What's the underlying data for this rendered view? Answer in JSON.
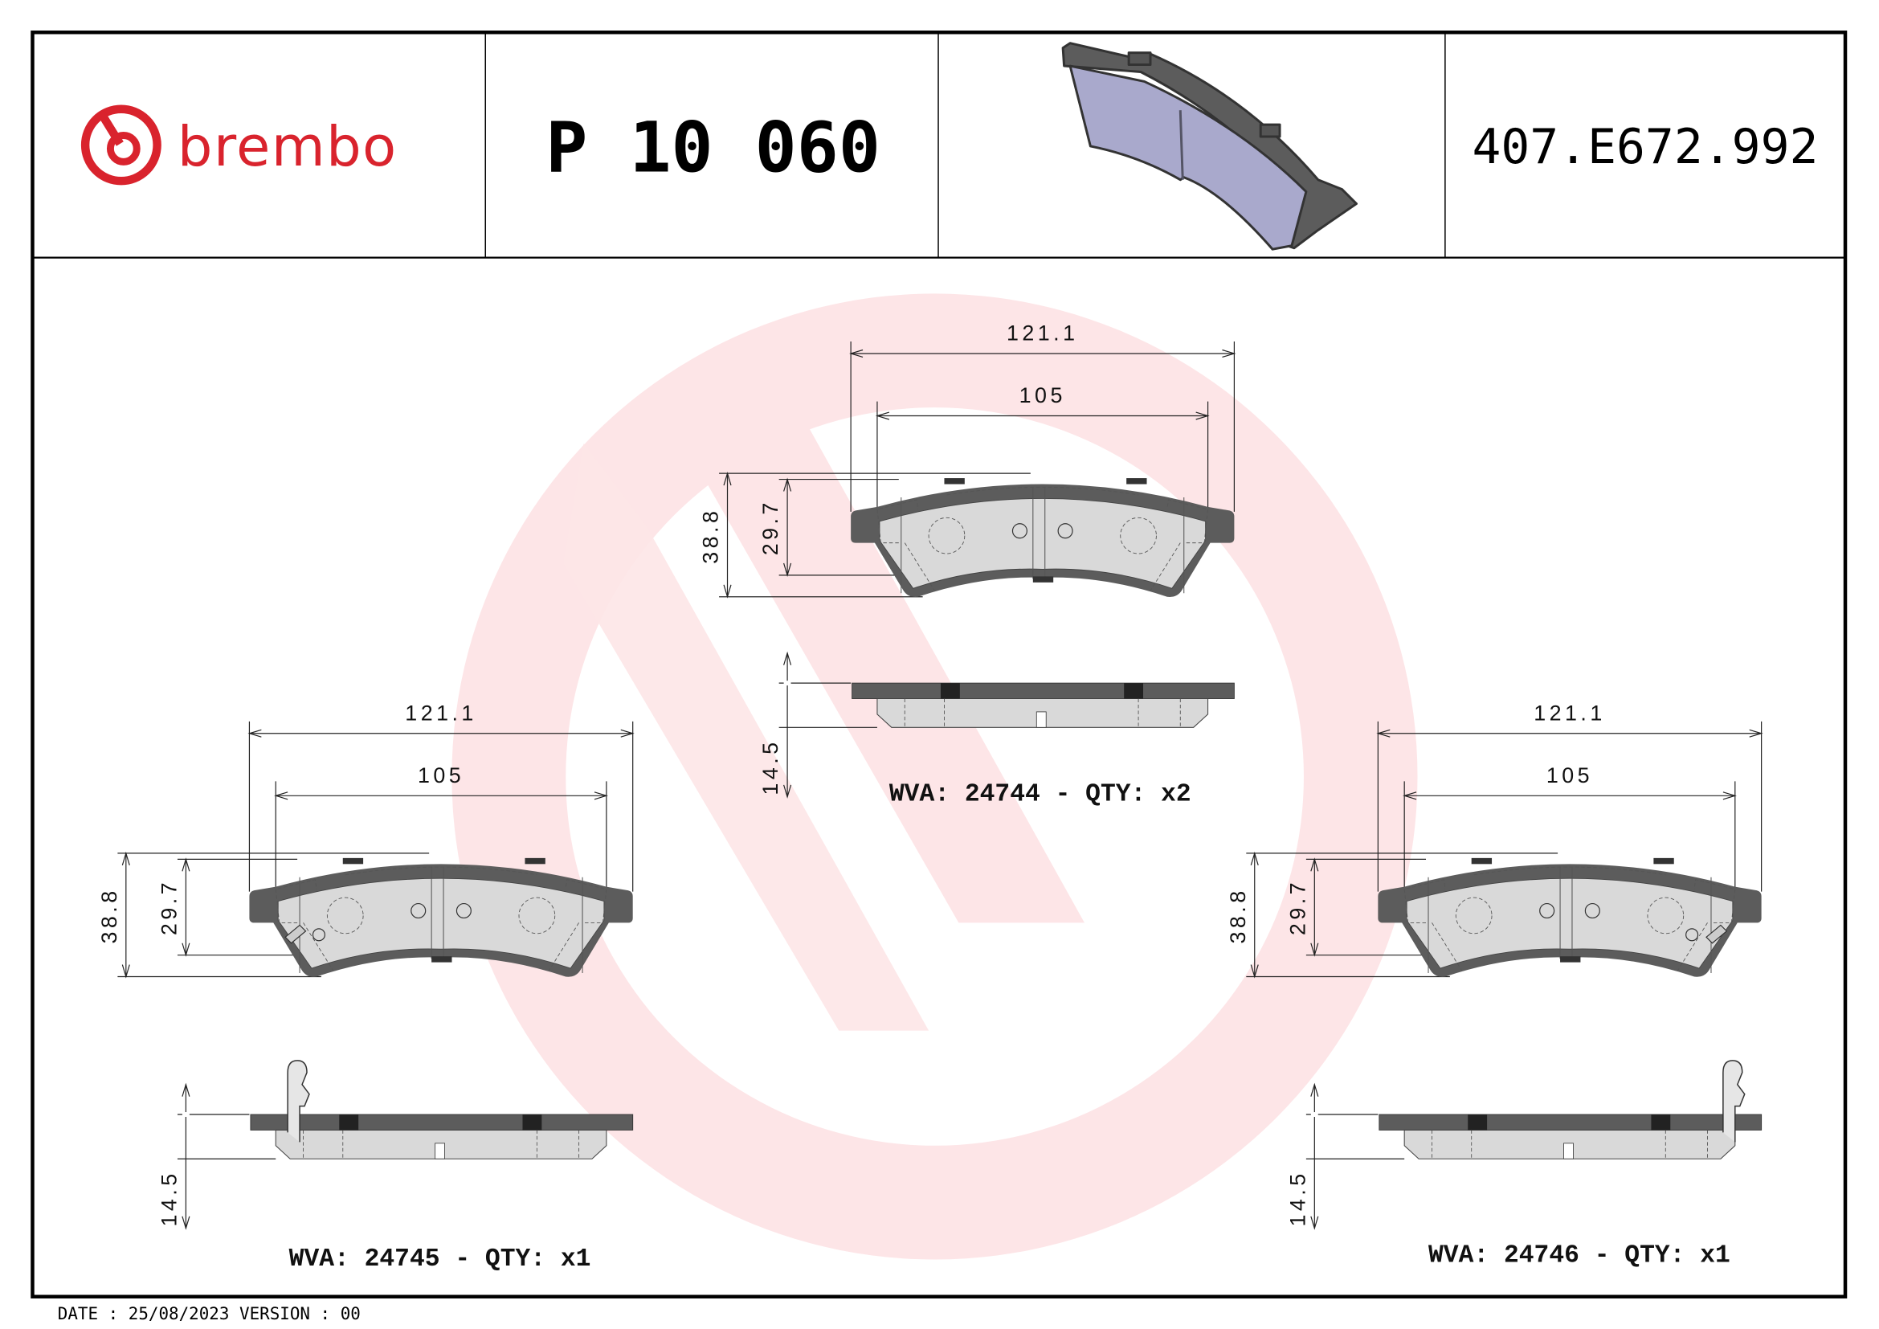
{
  "header": {
    "brand": "brembo",
    "part_number": "P 10 060",
    "reference": "407.E672.992"
  },
  "colors": {
    "brand_red": "#d9232d",
    "watermark": "#fde5e7",
    "plate": "#5c5c5c",
    "friction": "#d9d9d9",
    "render_face": "#a9a9cc"
  },
  "pads": [
    {
      "id": "top",
      "dims": {
        "overall_length": "121.1",
        "friction_length": "105",
        "overall_height": "38.8",
        "friction_height": "29.7",
        "thickness": "14.5"
      },
      "label": "WVA: 24744 - QTY: x2"
    },
    {
      "id": "left",
      "dims": {
        "overall_length": "121.1",
        "friction_length": "105",
        "overall_height": "38.8",
        "friction_height": "29.7",
        "thickness": "14.5"
      },
      "label": "WVA: 24745 - QTY: x1"
    },
    {
      "id": "right",
      "dims": {
        "overall_length": "121.1",
        "friction_length": "105",
        "overall_height": "38.8",
        "friction_height": "29.7",
        "thickness": "14.5"
      },
      "label": "WVA: 24746 - QTY: x1"
    }
  ],
  "footer": {
    "text": "DATE : 25/08/2023 VERSION : 00"
  }
}
